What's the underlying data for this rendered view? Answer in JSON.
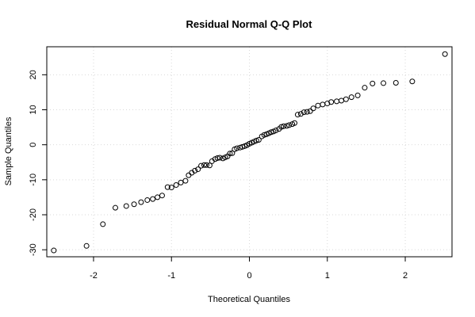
{
  "chart_data": {
    "type": "scatter",
    "title": "Residual Normal Q-Q Plot",
    "xlabel": "Theoretical Quantiles",
    "ylabel": "Sample Quantiles",
    "xlim": [
      -2.6,
      2.6
    ],
    "ylim": [
      -32,
      28
    ],
    "x_ticks": [
      -2,
      -1,
      0,
      1,
      2
    ],
    "y_ticks": [
      -30,
      -20,
      -10,
      0,
      10,
      20
    ],
    "x_tick_labels": [
      "-2",
      "-1",
      "0",
      "1",
      "2"
    ],
    "y_tick_labels": [
      "-30",
      "-20",
      "-10",
      "0",
      "10",
      "20"
    ],
    "grid": true,
    "marker": "open-circle",
    "series": [
      {
        "points": [
          [
            -2.51,
            -30.2
          ],
          [
            -2.09,
            -28.9
          ],
          [
            -1.88,
            -22.7
          ],
          [
            -1.72,
            -18.0
          ],
          [
            -1.58,
            -17.5
          ],
          [
            -1.48,
            -17.0
          ],
          [
            -1.39,
            -16.4
          ],
          [
            -1.31,
            -15.8
          ],
          [
            -1.24,
            -15.5
          ],
          [
            -1.18,
            -15.0
          ],
          [
            -1.12,
            -14.5
          ],
          [
            -1.05,
            -12.1
          ],
          [
            -1.0,
            -12.2
          ],
          [
            -0.94,
            -11.5
          ],
          [
            -0.88,
            -10.8
          ],
          [
            -0.82,
            -10.3
          ],
          [
            -0.78,
            -8.7
          ],
          [
            -0.74,
            -8.0
          ],
          [
            -0.7,
            -7.4
          ],
          [
            -0.66,
            -7.0
          ],
          [
            -0.62,
            -6.0
          ],
          [
            -0.58,
            -5.8
          ],
          [
            -0.55,
            -5.8
          ],
          [
            -0.51,
            -5.9
          ],
          [
            -0.48,
            -4.7
          ],
          [
            -0.44,
            -4.1
          ],
          [
            -0.41,
            -3.8
          ],
          [
            -0.38,
            -3.7
          ],
          [
            -0.34,
            -3.9
          ],
          [
            -0.31,
            -3.6
          ],
          [
            -0.28,
            -3.3
          ],
          [
            -0.25,
            -2.5
          ],
          [
            -0.22,
            -2.4
          ],
          [
            -0.19,
            -1.3
          ],
          [
            -0.16,
            -1.0
          ],
          [
            -0.12,
            -0.8
          ],
          [
            -0.09,
            -0.6
          ],
          [
            -0.06,
            -0.4
          ],
          [
            -0.03,
            -0.1
          ],
          [
            0.0,
            0.3
          ],
          [
            0.03,
            0.6
          ],
          [
            0.06,
            0.9
          ],
          [
            0.09,
            1.2
          ],
          [
            0.12,
            1.4
          ],
          [
            0.16,
            2.4
          ],
          [
            0.19,
            2.8
          ],
          [
            0.22,
            3.0
          ],
          [
            0.25,
            3.3
          ],
          [
            0.28,
            3.6
          ],
          [
            0.31,
            3.8
          ],
          [
            0.34,
            4.1
          ],
          [
            0.38,
            4.5
          ],
          [
            0.41,
            5.1
          ],
          [
            0.44,
            5.3
          ],
          [
            0.48,
            5.4
          ],
          [
            0.51,
            5.6
          ],
          [
            0.55,
            5.9
          ],
          [
            0.58,
            6.2
          ],
          [
            0.62,
            8.6
          ],
          [
            0.66,
            8.8
          ],
          [
            0.7,
            9.3
          ],
          [
            0.74,
            9.4
          ],
          [
            0.78,
            9.6
          ],
          [
            0.82,
            10.4
          ],
          [
            0.88,
            11.2
          ],
          [
            0.94,
            11.5
          ],
          [
            1.0,
            11.8
          ],
          [
            1.05,
            12.2
          ],
          [
            1.12,
            12.4
          ],
          [
            1.18,
            12.6
          ],
          [
            1.24,
            13.0
          ],
          [
            1.31,
            13.6
          ],
          [
            1.39,
            14.1
          ],
          [
            1.48,
            16.3
          ],
          [
            1.58,
            17.5
          ],
          [
            1.72,
            17.6
          ],
          [
            1.88,
            17.7
          ],
          [
            2.09,
            18.1
          ],
          [
            2.51,
            25.9
          ]
        ]
      }
    ]
  }
}
